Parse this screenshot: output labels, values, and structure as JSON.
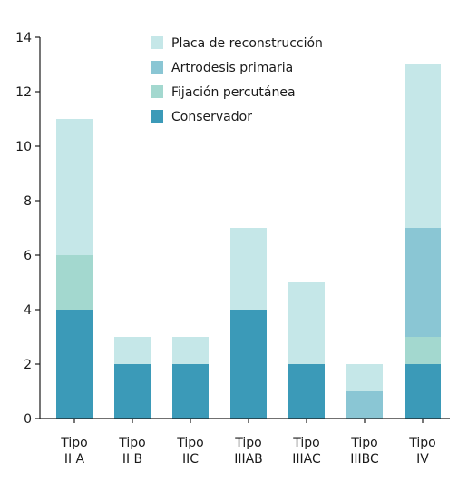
{
  "chart_data": {
    "type": "bar",
    "stacked": true,
    "categories": [
      [
        "Tipo",
        "II A"
      ],
      [
        "Tipo",
        "II B"
      ],
      [
        "Tipo",
        "IIC"
      ],
      [
        "Tipo",
        "IIIAB"
      ],
      [
        "Tipo",
        "IIIAC"
      ],
      [
        "Tipo",
        "IIIBC"
      ],
      [
        "Tipo",
        "IV"
      ]
    ],
    "series": [
      {
        "name": "Conservador",
        "color": "#3b9ab8",
        "values": [
          4,
          2,
          2,
          4,
          2,
          0,
          2
        ]
      },
      {
        "name": "Fijación percutánea",
        "color": "#a3d8cf",
        "values": [
          2,
          0,
          0,
          0,
          0,
          0,
          1
        ]
      },
      {
        "name": "Artrodesis primaria",
        "color": "#8ac6d4",
        "values": [
          0,
          0,
          0,
          0,
          0,
          1,
          4
        ]
      },
      {
        "name": "Placa de reconstrucción",
        "color": "#c5e7e8",
        "values": [
          5,
          1,
          1,
          3,
          3,
          1,
          6
        ]
      }
    ],
    "legend_order": [
      "Placa de reconstrucción",
      "Artrodesis primaria",
      "Fijación percutánea",
      "Conservador"
    ],
    "ylim": [
      0,
      14
    ],
    "yticks": [
      0,
      2,
      4,
      6,
      8,
      10,
      12,
      14
    ],
    "grid": false,
    "legend_position": "top-center"
  }
}
